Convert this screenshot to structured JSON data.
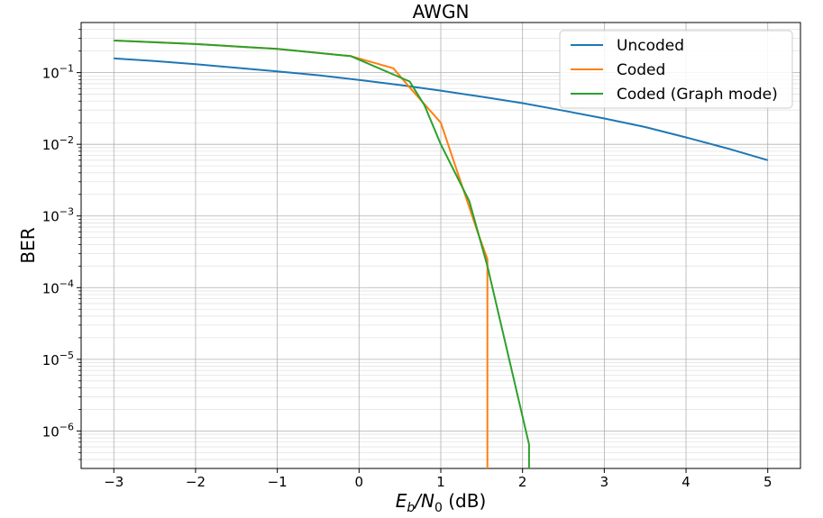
{
  "chart_data": {
    "type": "line",
    "title": "AWGN",
    "xlabel": {
      "main": "E",
      "sub1": "b",
      "mid": "/N",
      "sub2": "0",
      "tail": " (dB)"
    },
    "ylabel": "BER",
    "xlim": [
      -3.4,
      5.4
    ],
    "ylim": [
      3e-07,
      0.5
    ],
    "yscale": "log",
    "grid": true,
    "legend_position": "top-right",
    "x_ticks": [
      -3,
      -2,
      -1,
      0,
      1,
      2,
      3,
      4,
      5
    ],
    "x_tick_labels": [
      "−3",
      "−2",
      "−1",
      "0",
      "1",
      "2",
      "3",
      "4",
      "5"
    ],
    "y_ticks": [
      {
        "value": 0.1,
        "base": "10",
        "exp": "−1"
      },
      {
        "value": 0.01,
        "base": "10",
        "exp": "−2"
      },
      {
        "value": 0.001,
        "base": "10",
        "exp": "−3"
      },
      {
        "value": 0.0001,
        "base": "10",
        "exp": "−4"
      },
      {
        "value": 1e-05,
        "base": "10",
        "exp": "−5"
      },
      {
        "value": 1e-06,
        "base": "10",
        "exp": "−6"
      }
    ],
    "series": [
      {
        "name": "Uncoded",
        "color": "#1f77b4",
        "x": [
          -3,
          -2.5,
          -2,
          -1.5,
          -1,
          -0.5,
          0,
          0.5,
          1,
          1.5,
          2,
          2.5,
          3,
          3.5,
          4,
          4.5,
          5
        ],
        "y": [
          0.158,
          0.145,
          0.131,
          0.117,
          0.104,
          0.092,
          0.079,
          0.067,
          0.056,
          0.046,
          0.0375,
          0.0295,
          0.0229,
          0.0174,
          0.0125,
          0.0088,
          0.006
        ]
      },
      {
        "name": "Coded",
        "color": "#ff7f0e",
        "x": [
          -3,
          -2,
          -1,
          -0.1,
          0.42,
          0.62,
          1.0,
          1.45,
          1.57,
          1.57
        ],
        "y": [
          0.28,
          0.25,
          0.215,
          0.17,
          0.115,
          0.062,
          0.02,
          0.0006,
          0.00025,
          3e-07
        ]
      },
      {
        "name": "Coded (Graph mode)",
        "color": "#2ca02c",
        "x": [
          -3,
          -2,
          -1,
          -0.1,
          0.62,
          0.8,
          1.0,
          1.35,
          1.57,
          2.08,
          2.08
        ],
        "y": [
          0.28,
          0.25,
          0.215,
          0.17,
          0.075,
          0.035,
          0.01,
          0.0016,
          0.0002,
          6.5e-07,
          3e-07
        ]
      }
    ]
  }
}
